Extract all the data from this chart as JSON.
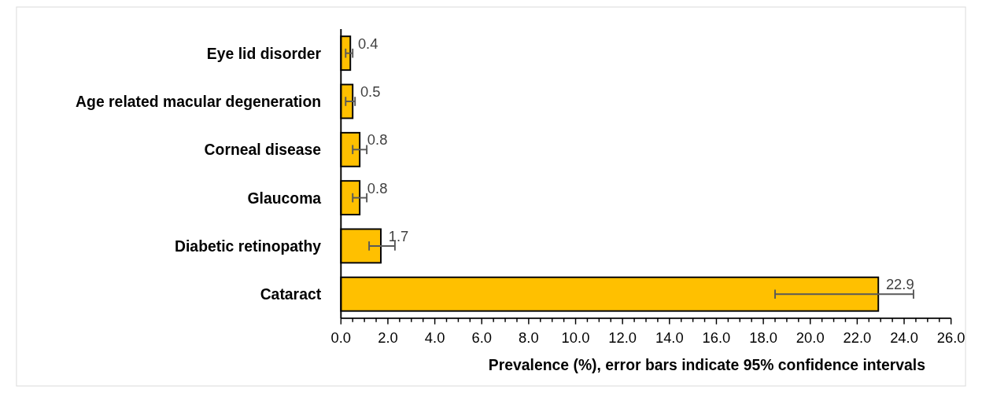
{
  "chart_data": {
    "type": "bar",
    "orientation": "horizontal",
    "xlabel": "Prevalence (%), error bars indicate 95% confidence intervals",
    "categories": [
      "Eye lid disorder",
      "Age related macular degeneration",
      "Corneal disease",
      "Glaucoma",
      "Diabetic retinopathy",
      "Cataract"
    ],
    "values": [
      0.4,
      0.5,
      0.8,
      0.8,
      1.7,
      22.9
    ],
    "errors": [
      [
        0.2,
        0.5
      ],
      [
        0.2,
        0.6
      ],
      [
        0.5,
        1.1
      ],
      [
        0.5,
        1.1
      ],
      [
        1.2,
        2.3
      ],
      [
        18.5,
        24.4
      ]
    ],
    "color": "#ffc000",
    "data_labels": true,
    "xlim": [
      0,
      26
    ],
    "xticks": [
      {
        "value": 0,
        "label": "0.0"
      },
      {
        "value": 0.5,
        "label": null
      },
      {
        "value": 1,
        "label": null
      },
      {
        "value": 1.5,
        "label": null
      },
      {
        "value": 2,
        "label": "2.0"
      },
      {
        "value": 2.5,
        "label": null
      },
      {
        "value": 3,
        "label": null
      },
      {
        "value": 3.5,
        "label": null
      },
      {
        "value": 4,
        "label": "4.0"
      },
      {
        "value": 4.5,
        "label": null
      },
      {
        "value": 5,
        "label": null
      },
      {
        "value": 5.5,
        "label": null
      },
      {
        "value": 6,
        "label": "6.0"
      },
      {
        "value": 6.5,
        "label": null
      },
      {
        "value": 7,
        "label": null
      },
      {
        "value": 7.5,
        "label": null
      },
      {
        "value": 8,
        "label": "8.0"
      },
      {
        "value": 8.5,
        "label": null
      },
      {
        "value": 9,
        "label": null
      },
      {
        "value": 9.5,
        "label": null
      },
      {
        "value": 10,
        "label": "10.0"
      },
      {
        "value": 10.5,
        "label": null
      },
      {
        "value": 11,
        "label": null
      },
      {
        "value": 11.5,
        "label": null
      },
      {
        "value": 12,
        "label": "12.0"
      },
      {
        "value": 12.5,
        "label": null
      },
      {
        "value": 13,
        "label": null
      },
      {
        "value": 13.5,
        "label": null
      },
      {
        "value": 14,
        "label": "14.0"
      },
      {
        "value": 14.5,
        "label": null
      },
      {
        "value": 15,
        "label": null
      },
      {
        "value": 15.5,
        "label": null
      },
      {
        "value": 16,
        "label": "16.0"
      },
      {
        "value": 16.5,
        "label": null
      },
      {
        "value": 17,
        "label": null
      },
      {
        "value": 17.5,
        "label": null
      },
      {
        "value": 18,
        "label": "18.0"
      },
      {
        "value": 18.5,
        "label": null
      },
      {
        "value": 19,
        "label": null
      },
      {
        "value": 19.5,
        "label": null
      },
      {
        "value": 20,
        "label": "20.0"
      },
      {
        "value": 20.5,
        "label": null
      },
      {
        "value": 21,
        "label": null
      },
      {
        "value": 21.5,
        "label": null
      },
      {
        "value": 22,
        "label": "22.0"
      },
      {
        "value": 22.5,
        "label": null
      },
      {
        "value": 23,
        "label": null
      },
      {
        "value": 23.5,
        "label": null
      },
      {
        "value": 24,
        "label": "24.0"
      },
      {
        "value": 24.5,
        "label": null
      },
      {
        "value": 25,
        "label": null
      },
      {
        "value": 25.5,
        "label": null
      },
      {
        "value": 26,
        "label": "26.0"
      }
    ]
  }
}
